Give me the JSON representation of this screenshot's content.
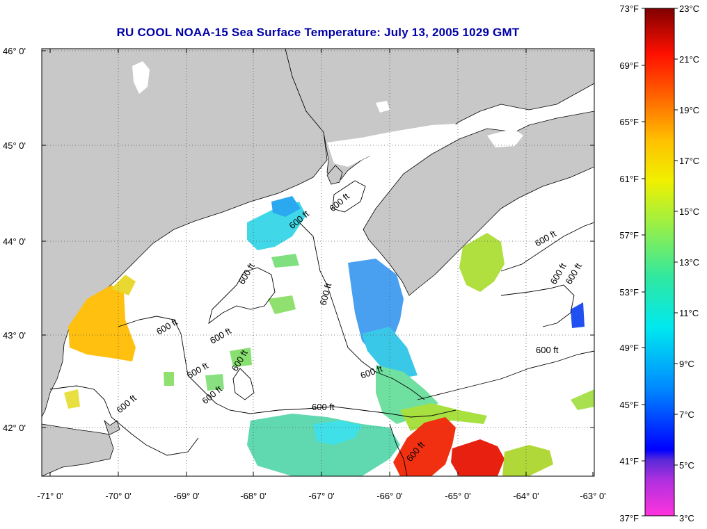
{
  "title": "RU COOL  NOAA-15  Sea Surface Temperature:  July 13, 2005 1029 GMT",
  "map": {
    "lat_labels": [
      "46° 0'",
      "45° 0'",
      "44° 0'",
      "43° 0'",
      "42° 0'"
    ],
    "lon_labels": [
      "-71° 0'",
      "-70° 0'",
      "-69° 0'",
      "-68° 0'",
      "-67° 0'",
      "-66° 0'",
      "-65° 0'",
      "-64° 0'",
      "-63° 0'"
    ],
    "contour_label": "600 ft",
    "colors": {
      "land": "#c8c8c8",
      "cloud": "#ffffff",
      "grid": "#555555"
    }
  },
  "colorbar": {
    "fahrenheit_labels": [
      "73°F",
      "69°F",
      "65°F",
      "61°F",
      "57°F",
      "53°F",
      "49°F",
      "45°F",
      "41°F",
      "37°F"
    ],
    "celsius_labels": [
      "23°C",
      "21°C",
      "19°C",
      "17°C",
      "15°C",
      "13°C",
      "11°C",
      "9°C",
      "7°C",
      "5°C",
      "3°C"
    ],
    "range_celsius": [
      3,
      23
    ]
  }
}
